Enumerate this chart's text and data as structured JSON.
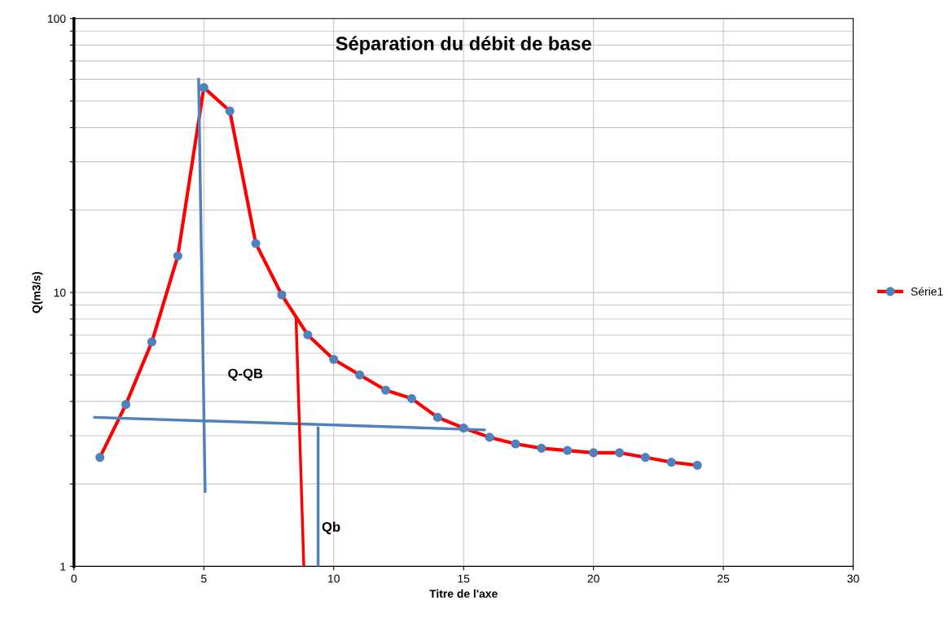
{
  "chart_data": {
    "type": "line",
    "title": "Séparation du débit de base",
    "xlabel": "Titre de l'axe",
    "ylabel": "Q(m3/s)",
    "log": "y",
    "grid": true,
    "legend": "right",
    "marker": "circle",
    "line_style": "solid",
    "xlim": [
      0,
      30
    ],
    "xticks": [
      0,
      5,
      10,
      15,
      20,
      25,
      30
    ],
    "ylim": [
      1,
      100
    ],
    "yticks": [
      1,
      {
        "value": 2,
        "label": null
      },
      {
        "value": 3,
        "label": null
      },
      {
        "value": 4,
        "label": null
      },
      {
        "value": 5,
        "label": null
      },
      {
        "value": 6,
        "label": null
      },
      {
        "value": 7,
        "label": null
      },
      {
        "value": 8,
        "label": null
      },
      {
        "value": 9,
        "label": null
      },
      10,
      {
        "value": 20,
        "label": null
      },
      {
        "value": 30,
        "label": null
      },
      {
        "value": 40,
        "label": null
      },
      {
        "value": 50,
        "label": null
      },
      {
        "value": 60,
        "label": null
      },
      {
        "value": 70,
        "label": null
      },
      {
        "value": 80,
        "label": null
      },
      {
        "value": 90,
        "label": null
      },
      100
    ],
    "series": [
      {
        "name": "Série1",
        "color": "#ff0000",
        "x": [
          1,
          2,
          3,
          4,
          5,
          6,
          7,
          8,
          9,
          10,
          11,
          12,
          13,
          14,
          15,
          16,
          17,
          18,
          19,
          20,
          21,
          22,
          23,
          24
        ],
        "values": [
          2.5,
          3.9,
          6.6,
          13.6,
          56,
          46,
          15.1,
          9.8,
          7.0,
          5.7,
          5.0,
          4.4,
          4.1,
          3.5,
          3.2,
          2.96,
          2.8,
          2.7,
          2.65,
          2.6,
          2.6,
          2.5,
          2.4,
          2.34
        ]
      },
      {
        "type": "line",
        "color": "#4f81bd",
        "x": [
          4.8,
          5.05
        ],
        "values": [
          60,
          1.88
        ],
        "marker": "none"
      },
      {
        "type": "line",
        "color": "#4f81bd",
        "x": [
          0.8,
          15.8
        ],
        "values": [
          3.5,
          3.15
        ],
        "marker": "none"
      },
      {
        "type": "line",
        "color": "#ff0000",
        "x": [
          8.55,
          8.85
        ],
        "values": [
          8.1,
          1
        ],
        "marker": "none"
      },
      {
        "type": "line",
        "color": "#4f81bd",
        "x": [
          9.4,
          9.4
        ],
        "values": [
          3.2,
          1
        ],
        "marker": "none"
      }
    ],
    "annotations": [
      "Q-QB",
      "Qb"
    ]
  }
}
